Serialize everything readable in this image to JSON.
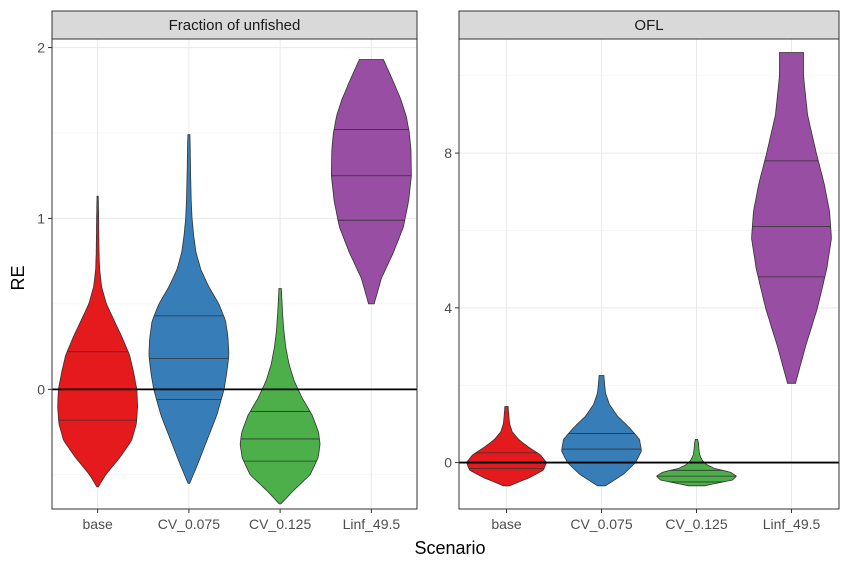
{
  "chart_data": {
    "type": "violin",
    "xlabel": "Scenario",
    "ylabel": "RE",
    "categories": [
      "base",
      "CV_0.075",
      "CV_0.125",
      "Linf_49.5"
    ],
    "colors": {
      "base": "#E41A1C",
      "CV_0.075": "#377EB8",
      "CV_0.125": "#4DAF4A",
      "Linf_49.5": "#984EA3"
    },
    "reference_line_y": 0,
    "grid": true,
    "panels": [
      {
        "title": "Fraction of unfished",
        "ylim": [
          -0.7,
          2.05
        ],
        "yticks": [
          0,
          1,
          2
        ],
        "yticks_minor": [
          -0.5,
          0.5,
          1.5
        ],
        "violins": [
          {
            "name": "base",
            "quantiles": [
              -0.18,
              0.0,
              0.22
            ],
            "profile": [
              [
                -0.57,
                0.02
              ],
              [
                -0.5,
                0.2
              ],
              [
                -0.4,
                0.55
              ],
              [
                -0.3,
                0.85
              ],
              [
                -0.2,
                0.97
              ],
              [
                -0.1,
                1.0
              ],
              [
                0.0,
                0.98
              ],
              [
                0.1,
                0.9
              ],
              [
                0.2,
                0.8
              ],
              [
                0.3,
                0.62
              ],
              [
                0.4,
                0.42
              ],
              [
                0.5,
                0.22
              ],
              [
                0.6,
                0.1
              ],
              [
                0.7,
                0.05
              ],
              [
                0.8,
                0.035
              ],
              [
                0.9,
                0.03
              ],
              [
                1.0,
                0.025
              ],
              [
                1.13,
                0.015
              ]
            ]
          },
          {
            "name": "CV_0.075",
            "quantiles": [
              -0.06,
              0.18,
              0.43
            ],
            "profile": [
              [
                -0.55,
                0.02
              ],
              [
                -0.45,
                0.2
              ],
              [
                -0.3,
                0.45
              ],
              [
                -0.15,
                0.7
              ],
              [
                0.0,
                0.88
              ],
              [
                0.1,
                0.95
              ],
              [
                0.2,
                1.0
              ],
              [
                0.3,
                0.98
              ],
              [
                0.4,
                0.92
              ],
              [
                0.5,
                0.75
              ],
              [
                0.6,
                0.5
              ],
              [
                0.7,
                0.3
              ],
              [
                0.8,
                0.18
              ],
              [
                0.9,
                0.12
              ],
              [
                1.0,
                0.08
              ],
              [
                1.1,
                0.06
              ],
              [
                1.2,
                0.05
              ],
              [
                1.3,
                0.04
              ],
              [
                1.4,
                0.035
              ],
              [
                1.49,
                0.025
              ]
            ]
          },
          {
            "name": "CV_0.125",
            "quantiles": [
              -0.42,
              -0.29,
              -0.13
            ],
            "profile": [
              [
                -0.67,
                0.02
              ],
              [
                -0.6,
                0.3
              ],
              [
                -0.5,
                0.75
              ],
              [
                -0.4,
                0.95
              ],
              [
                -0.32,
                1.0
              ],
              [
                -0.25,
                0.96
              ],
              [
                -0.15,
                0.8
              ],
              [
                -0.05,
                0.55
              ],
              [
                0.05,
                0.35
              ],
              [
                0.15,
                0.22
              ],
              [
                0.25,
                0.14
              ],
              [
                0.35,
                0.09
              ],
              [
                0.45,
                0.06
              ],
              [
                0.59,
                0.03
              ]
            ]
          },
          {
            "name": "Linf_49.5",
            "quantiles": [
              0.99,
              1.25,
              1.52
            ],
            "profile": [
              [
                0.5,
                0.07
              ],
              [
                0.65,
                0.25
              ],
              [
                0.8,
                0.55
              ],
              [
                0.95,
                0.8
              ],
              [
                1.1,
                0.93
              ],
              [
                1.25,
                1.0
              ],
              [
                1.4,
                0.99
              ],
              [
                1.5,
                0.95
              ],
              [
                1.6,
                0.87
              ],
              [
                1.7,
                0.73
              ],
              [
                1.8,
                0.55
              ],
              [
                1.93,
                0.3
              ]
            ]
          }
        ]
      },
      {
        "title": "OFL",
        "ylim": [
          -1.2,
          10.95
        ],
        "yticks": [
          0,
          4,
          8
        ],
        "yticks_minor": [
          2,
          6,
          10
        ],
        "violins": [
          {
            "name": "base",
            "quantiles": [
              -0.15,
              0.0,
              0.25
            ],
            "profile": [
              [
                -0.6,
                0.08
              ],
              [
                -0.4,
                0.55
              ],
              [
                -0.2,
                0.92
              ],
              [
                0.0,
                1.0
              ],
              [
                0.2,
                0.85
              ],
              [
                0.4,
                0.55
              ],
              [
                0.6,
                0.3
              ],
              [
                0.8,
                0.14
              ],
              [
                1.0,
                0.08
              ],
              [
                1.2,
                0.06
              ],
              [
                1.45,
                0.04
              ]
            ]
          },
          {
            "name": "CV_0.075",
            "quantiles": [
              0.0,
              0.35,
              0.75
            ],
            "profile": [
              [
                -0.6,
                0.1
              ],
              [
                -0.3,
                0.55
              ],
              [
                0.0,
                0.85
              ],
              [
                0.3,
                1.0
              ],
              [
                0.6,
                0.95
              ],
              [
                0.9,
                0.7
              ],
              [
                1.2,
                0.4
              ],
              [
                1.5,
                0.2
              ],
              [
                1.8,
                0.1
              ],
              [
                2.0,
                0.08
              ],
              [
                2.25,
                0.06
              ]
            ]
          },
          {
            "name": "CV_0.125",
            "quantiles": [
              -0.5,
              -0.35,
              -0.2
            ],
            "profile": [
              [
                -0.6,
                0.2
              ],
              [
                -0.45,
                0.9
              ],
              [
                -0.35,
                1.0
              ],
              [
                -0.25,
                0.85
              ],
              [
                -0.15,
                0.45
              ],
              [
                -0.05,
                0.25
              ],
              [
                0.05,
                0.15
              ],
              [
                0.2,
                0.08
              ],
              [
                0.35,
                0.06
              ],
              [
                0.5,
                0.05
              ],
              [
                0.6,
                0.03
              ]
            ]
          },
          {
            "name": "Linf_49.5",
            "quantiles": [
              4.8,
              6.1,
              7.8
            ],
            "profile": [
              [
                2.05,
                0.1
              ],
              [
                3.0,
                0.35
              ],
              [
                4.0,
                0.65
              ],
              [
                5.0,
                0.88
              ],
              [
                5.8,
                1.0
              ],
              [
                6.5,
                0.95
              ],
              [
                7.2,
                0.82
              ],
              [
                8.0,
                0.62
              ],
              [
                9.0,
                0.4
              ],
              [
                10.0,
                0.3
              ],
              [
                10.6,
                0.3
              ]
            ]
          }
        ]
      }
    ]
  }
}
